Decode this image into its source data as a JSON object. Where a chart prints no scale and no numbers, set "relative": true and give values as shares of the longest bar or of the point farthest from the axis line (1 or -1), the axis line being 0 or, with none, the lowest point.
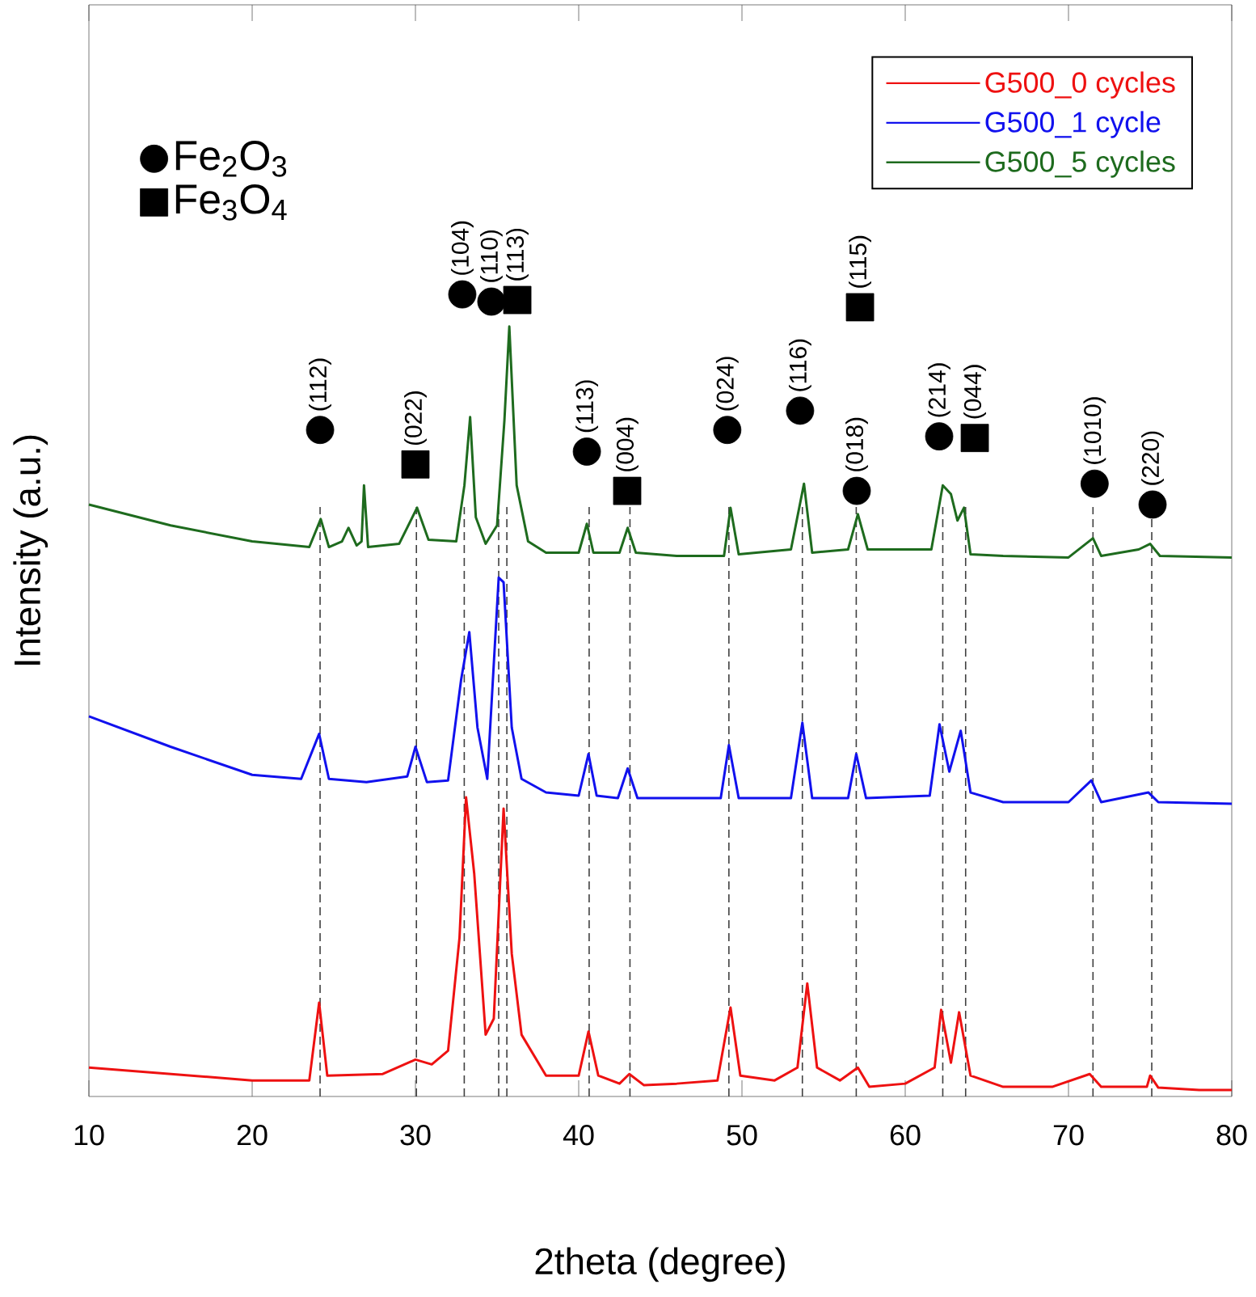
{
  "chart_data": {
    "type": "line",
    "xlabel": "2theta (degree)",
    "ylabel": "Intensity (a.u.)",
    "xlim": [
      10,
      80
    ],
    "xticks": [
      10,
      20,
      30,
      40,
      50,
      60,
      70,
      80
    ],
    "relative": true,
    "tick_labels": "x",
    "legend": "top right",
    "series": [
      {
        "name": "G500_0 cycles",
        "color": "#ee1111",
        "x": [
          10,
          20,
          23.5,
          24.1,
          24.6,
          28,
          30,
          31,
          32,
          32.7,
          33.1,
          33.6,
          34.3,
          34.8,
          35.4,
          35.9,
          36.5,
          38,
          40,
          40.6,
          41.2,
          42.5,
          43.1,
          44,
          46,
          48.5,
          49.3,
          49.9,
          52,
          53.4,
          54.0,
          54.6,
          56,
          57.1,
          57.8,
          60,
          61.8,
          62.2,
          62.8,
          63.3,
          64.0,
          66,
          69,
          71.3,
          72,
          74.8,
          75.0,
          75.5,
          78,
          80
        ],
        "values": [
          0.036,
          0.02,
          0.02,
          0.117,
          0.026,
          0.028,
          0.046,
          0.04,
          0.057,
          0.198,
          0.373,
          0.278,
          0.077,
          0.097,
          0.359,
          0.178,
          0.077,
          0.026,
          0.026,
          0.081,
          0.026,
          0.016,
          0.028,
          0.014,
          0.016,
          0.02,
          0.111,
          0.026,
          0.02,
          0.036,
          0.141,
          0.036,
          0.02,
          0.036,
          0.012,
          0.016,
          0.036,
          0.108,
          0.042,
          0.105,
          0.026,
          0.012,
          0.012,
          0.028,
          0.012,
          0.012,
          0.026,
          0.011,
          0.008,
          0.008
        ]
      },
      {
        "name": "G500_1 cycle",
        "color": "#1111ee",
        "x": [
          10,
          15,
          20,
          23,
          24.1,
          24.7,
          27,
          29.5,
          30.0,
          30.7,
          32,
          32.8,
          33.3,
          33.8,
          34.4,
          35.1,
          35.4,
          35.9,
          36.5,
          38,
          40,
          40.6,
          41.1,
          42.4,
          43.0,
          43.6,
          46,
          48.7,
          49.2,
          49.8,
          53,
          53.7,
          54.3,
          56.5,
          57.0,
          57.6,
          61.5,
          62.1,
          62.7,
          63.4,
          64.0,
          66,
          70,
          71.4,
          72,
          74.9,
          75.5,
          80
        ],
        "values": [
          0.474,
          0.436,
          0.401,
          0.396,
          0.452,
          0.396,
          0.392,
          0.399,
          0.436,
          0.392,
          0.394,
          0.52,
          0.579,
          0.46,
          0.396,
          0.647,
          0.641,
          0.46,
          0.396,
          0.379,
          0.375,
          0.427,
          0.375,
          0.372,
          0.409,
          0.372,
          0.372,
          0.372,
          0.438,
          0.372,
          0.372,
          0.466,
          0.372,
          0.372,
          0.427,
          0.372,
          0.375,
          0.464,
          0.405,
          0.456,
          0.379,
          0.367,
          0.367,
          0.394,
          0.367,
          0.379,
          0.367,
          0.365
        ]
      },
      {
        "name": "G500_5 cycles",
        "color": "#1e6b1e",
        "x": [
          10,
          15,
          20,
          23.5,
          24.2,
          24.7,
          25.5,
          25.9,
          26.4,
          26.7,
          26.85,
          27.1,
          29,
          30.1,
          30.8,
          32.5,
          33.0,
          33.35,
          33.7,
          34.3,
          35.0,
          35.45,
          35.75,
          36.2,
          36.9,
          38,
          40,
          40.5,
          40.9,
          42.5,
          43.0,
          43.5,
          46,
          48.9,
          49.3,
          49.8,
          53,
          53.8,
          54.3,
          56.5,
          57.1,
          57.7,
          61.6,
          62.3,
          62.8,
          63.2,
          63.6,
          64.0,
          66,
          70,
          71.5,
          72,
          74.3,
          75.0,
          75.6,
          80
        ],
        "values": [
          0.738,
          0.712,
          0.692,
          0.685,
          0.72,
          0.685,
          0.692,
          0.709,
          0.687,
          0.692,
          0.762,
          0.685,
          0.689,
          0.734,
          0.694,
          0.692,
          0.762,
          0.847,
          0.722,
          0.689,
          0.712,
          0.843,
          0.96,
          0.762,
          0.692,
          0.678,
          0.678,
          0.714,
          0.678,
          0.678,
          0.709,
          0.678,
          0.674,
          0.674,
          0.734,
          0.676,
          0.682,
          0.764,
          0.678,
          0.682,
          0.726,
          0.682,
          0.682,
          0.762,
          0.751,
          0.718,
          0.734,
          0.676,
          0.674,
          0.672,
          0.696,
          0.674,
          0.682,
          0.689,
          0.674,
          0.672
        ]
      },
      {
        "name": "Fe$_{2}$O$_{3}$",
        "color": "#000000",
        "type": "scatter",
        "marker": "circle",
        "x": [
          24.16,
          32.87,
          34.65,
          40.5,
          49.1,
          53.56,
          57.03,
          62.08,
          71.6,
          75.15
        ],
        "values": [
          0.831,
          1.0,
          0.991,
          0.804,
          0.831,
          0.855,
          0.755,
          0.823,
          0.764,
          0.738
        ]
      },
      {
        "name": "Fe$_{3}$O$_{4}$",
        "color": "#000000",
        "type": "scatter",
        "marker": "square",
        "x": [
          30.0,
          36.24,
          42.97,
          57.23,
          64.26
        ],
        "values": [
          0.788,
          0.993,
          0.755,
          0.984,
          0.821
        ]
      }
    ],
    "annotations": [
      {
        "text": "(112)",
        "x": 24.16,
        "y": 0.831
      },
      {
        "text": "(104)",
        "x": 32.87,
        "y": 1.0
      },
      {
        "text": "(110)",
        "x": 34.65,
        "y": 0.991
      },
      {
        "text": "(113)",
        "x": 40.5,
        "y": 0.804
      },
      {
        "text": "(024)",
        "x": 49.1,
        "y": 0.831
      },
      {
        "text": "(116)",
        "x": 53.56,
        "y": 0.855
      },
      {
        "text": "(018)",
        "x": 57.03,
        "y": 0.755
      },
      {
        "text": "(214)",
        "x": 62.08,
        "y": 0.823
      },
      {
        "text": "(1010)",
        "x": 71.6,
        "y": 0.764
      },
      {
        "text": "(220)",
        "x": 75.15,
        "y": 0.738
      },
      {
        "text": "(022)",
        "x": 30.0,
        "y": 0.788
      },
      {
        "text": "(113)",
        "x": 36.24,
        "y": 0.993
      },
      {
        "text": "(004)",
        "x": 42.97,
        "y": 0.755
      },
      {
        "text": "(115)",
        "x": 57.23,
        "y": 0.984
      },
      {
        "text": "(044)",
        "x": 64.26,
        "y": 0.821
      }
    ],
    "ref_lines": [
      {
        "axis": "x",
        "value": 24.16,
        "color": "#404040",
        "line_style": "dashed"
      },
      {
        "axis": "x",
        "value": 30.06,
        "color": "#404040",
        "line_style": "dashed"
      },
      {
        "axis": "x",
        "value": 32.99,
        "color": "#404040",
        "line_style": "dashed"
      },
      {
        "axis": "x",
        "value": 35.1,
        "color": "#404040",
        "line_style": "dashed"
      },
      {
        "axis": "x",
        "value": 35.6,
        "color": "#404040",
        "line_style": "dashed"
      },
      {
        "axis": "x",
        "value": 40.64,
        "color": "#404040",
        "line_style": "dashed"
      },
      {
        "axis": "x",
        "value": 43.14,
        "color": "#404040",
        "line_style": "dashed"
      },
      {
        "axis": "x",
        "value": 49.2,
        "color": "#404040",
        "line_style": "dashed"
      },
      {
        "axis": "x",
        "value": 53.7,
        "color": "#404040",
        "line_style": "dashed"
      },
      {
        "axis": "x",
        "value": 57.0,
        "color": "#404040",
        "line_style": "dashed"
      },
      {
        "axis": "x",
        "value": 62.3,
        "color": "#404040",
        "line_style": "dashed"
      },
      {
        "axis": "x",
        "value": 63.7,
        "color": "#404040",
        "line_style": "dashed"
      },
      {
        "axis": "x",
        "value": 71.5,
        "color": "#404040",
        "line_style": "dashed"
      },
      {
        "axis": "x",
        "value": 75.1,
        "color": "#404040",
        "line_style": "dashed"
      }
    ]
  }
}
